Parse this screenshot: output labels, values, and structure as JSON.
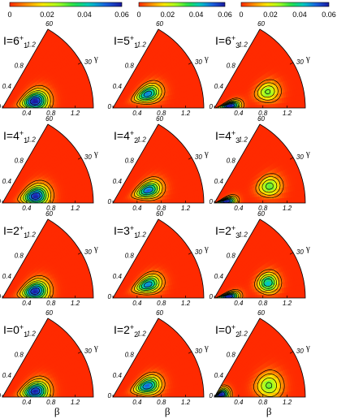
{
  "chart_data": {
    "type": "heatmap",
    "title": "",
    "colorbar": {
      "min": 0,
      "max": 0.06,
      "ticks": [
        "0",
        "0.02",
        "0.04",
        "0.06"
      ],
      "count": 3,
      "colormap": [
        "#ff2a00",
        "#ff8c00",
        "#ffe800",
        "#a8ff20",
        "#22e04a",
        "#00c8c8",
        "#1a60e0",
        "#1a1aa0"
      ]
    },
    "polar_axes": {
      "beta_label": "β",
      "gamma_label": "γ",
      "beta_ticks": [
        "0",
        "0.4",
        "0.8",
        "1.2"
      ],
      "gamma_ticks": [
        "30",
        "60"
      ],
      "beta_range": [
        0,
        1.5
      ],
      "gamma_range_deg": [
        0,
        60
      ]
    },
    "panels": [
      {
        "row": 0,
        "col": 0,
        "prefix": "I=",
        "spin": "6",
        "parity": "+",
        "index": "1",
        "peaks": [
          {
            "beta": 0.55,
            "gamma": 12,
            "amp": 0.062,
            "wb": 0.2,
            "wg": 15
          }
        ]
      },
      {
        "row": 0,
        "col": 1,
        "prefix": "I=",
        "spin": "5",
        "parity": "+",
        "index": "1",
        "peaks": [
          {
            "beta": 0.62,
            "gamma": 22,
            "amp": 0.05,
            "wb": 0.2,
            "wg": 11
          }
        ]
      },
      {
        "row": 0,
        "col": 2,
        "prefix": "I=",
        "spin": "6",
        "parity": "+",
        "index": "3",
        "peaks": [
          {
            "beta": 0.26,
            "gamma": 8,
            "amp": 0.066,
            "wb": 0.15,
            "wg": 13
          },
          {
            "beta": 0.92,
            "gamma": 17,
            "amp": 0.03,
            "wb": 0.18,
            "wg": 9
          }
        ]
      },
      {
        "row": 1,
        "col": 0,
        "prefix": "I=",
        "spin": "4",
        "parity": "+",
        "index": "1",
        "peaks": [
          {
            "beta": 0.56,
            "gamma": 12,
            "amp": 0.06,
            "wb": 0.2,
            "wg": 15
          }
        ]
      },
      {
        "row": 1,
        "col": 1,
        "prefix": "I=",
        "spin": "4",
        "parity": "+",
        "index": "2",
        "peaks": [
          {
            "beta": 0.62,
            "gamma": 20,
            "amp": 0.052,
            "wb": 0.2,
            "wg": 11
          }
        ]
      },
      {
        "row": 1,
        "col": 2,
        "prefix": "I=",
        "spin": "4",
        "parity": "+",
        "index": "3",
        "peaks": [
          {
            "beta": 0.2,
            "gamma": 8,
            "amp": 0.064,
            "wb": 0.14,
            "wg": 14
          },
          {
            "beta": 0.95,
            "gamma": 17,
            "amp": 0.032,
            "wb": 0.18,
            "wg": 9
          }
        ]
      },
      {
        "row": 2,
        "col": 0,
        "prefix": "I=",
        "spin": "2",
        "parity": "+",
        "index": "1",
        "peaks": [
          {
            "beta": 0.55,
            "gamma": 12,
            "amp": 0.06,
            "wb": 0.2,
            "wg": 15
          }
        ]
      },
      {
        "row": 2,
        "col": 1,
        "prefix": "I=",
        "spin": "3",
        "parity": "+",
        "index": "1",
        "peaks": [
          {
            "beta": 0.62,
            "gamma": 21,
            "amp": 0.05,
            "wb": 0.2,
            "wg": 11
          }
        ]
      },
      {
        "row": 2,
        "col": 2,
        "prefix": "I=",
        "spin": "2",
        "parity": "+",
        "index": "3",
        "peaks": [
          {
            "beta": 0.24,
            "gamma": 6,
            "amp": 0.064,
            "wb": 0.15,
            "wg": 13
          },
          {
            "beta": 0.92,
            "gamma": 16,
            "amp": 0.044,
            "wb": 0.16,
            "wg": 9
          }
        ]
      },
      {
        "row": 3,
        "col": 0,
        "prefix": "I=",
        "spin": "0",
        "parity": "+",
        "index": "1",
        "peaks": [
          {
            "beta": 0.55,
            "gamma": 10,
            "amp": 0.06,
            "wb": 0.2,
            "wg": 15
          }
        ]
      },
      {
        "row": 3,
        "col": 1,
        "prefix": "I=",
        "spin": "2",
        "parity": "+",
        "index": "2",
        "peaks": [
          {
            "beta": 0.6,
            "gamma": 18,
            "amp": 0.052,
            "wb": 0.2,
            "wg": 12
          }
        ]
      },
      {
        "row": 3,
        "col": 2,
        "prefix": "I=",
        "spin": "0",
        "parity": "+",
        "index": "2",
        "peaks": [
          {
            "beta": 0.12,
            "gamma": 20,
            "amp": 0.066,
            "wb": 0.12,
            "wg": 30
          },
          {
            "beta": 0.92,
            "gamma": 12,
            "amp": 0.03,
            "wb": 0.2,
            "wg": 12
          }
        ]
      }
    ]
  }
}
